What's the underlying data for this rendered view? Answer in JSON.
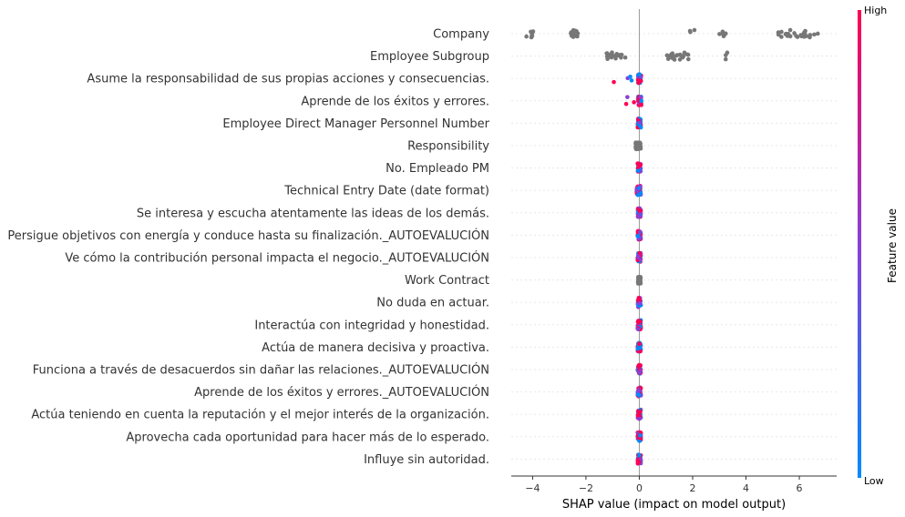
{
  "chart_data": {
    "type": "scatter",
    "subtype": "shap-beeswarm",
    "xlabel": "SHAP value (impact on model output)",
    "xlim": [
      -4.8,
      7.4
    ],
    "xticks": [
      -4,
      -2,
      0,
      2,
      4,
      6
    ],
    "xtick_labels": [
      "−4",
      "−2",
      "0",
      "2",
      "4",
      "6"
    ],
    "colorbar": {
      "title": "Feature value",
      "high_label": "High",
      "low_label": "Low",
      "high_color": "#ff0052",
      "low_color": "#008bfb",
      "missing_color": "#777777"
    },
    "features": [
      {
        "name": "Company",
        "color_mode": "missing",
        "clusters": [
          [
            -4.3,
            -3.9,
            8
          ],
          [
            -2.6,
            -2.3,
            22
          ],
          [
            1.8,
            2.2,
            3
          ],
          [
            3.0,
            3.3,
            6
          ],
          [
            5.2,
            6.7,
            28
          ]
        ]
      },
      {
        "name": "Employee Subgroup",
        "color_mode": "missing",
        "clusters": [
          [
            -1.3,
            -0.5,
            18
          ],
          [
            1.0,
            1.9,
            22
          ],
          [
            3.2,
            3.3,
            3
          ]
        ]
      },
      {
        "name": "Asume la responsabilidad de sus propias acciones y consecuencias.",
        "color_mode": "mixed",
        "clusters": [
          [
            -1.1,
            -0.25,
            4
          ],
          [
            -0.05,
            0.08,
            40
          ]
        ]
      },
      {
        "name": "Aprende de los éxitos y errores.",
        "color_mode": "mixed",
        "clusters": [
          [
            -0.5,
            -0.15,
            3
          ],
          [
            -0.05,
            0.08,
            40
          ]
        ]
      },
      {
        "name": "Employee Direct Manager Personnel Number",
        "color_mode": "mixed",
        "clusters": [
          [
            -0.06,
            0.06,
            40
          ]
        ]
      },
      {
        "name": "Responsibility",
        "color_mode": "missing",
        "clusters": [
          [
            -0.15,
            0.06,
            40
          ]
        ]
      },
      {
        "name": "No. Empleado PM ",
        "color_mode": "mixed",
        "clusters": [
          [
            -0.06,
            0.06,
            40
          ]
        ]
      },
      {
        "name": "Technical Entry Date (date format)",
        "color_mode": "mixed",
        "clusters": [
          [
            -0.1,
            0.06,
            40
          ]
        ]
      },
      {
        "name": "Se interesa y escucha atentamente las ideas de los demás.",
        "color_mode": "mixed",
        "clusters": [
          [
            -0.06,
            0.06,
            40
          ]
        ]
      },
      {
        "name": "Persigue objetivos con energía y conduce hasta su finalización._AUTOEVALUCIÓN",
        "color_mode": "mixed",
        "clusters": [
          [
            -0.06,
            0.06,
            40
          ]
        ]
      },
      {
        "name": "Ve cómo la contribución personal impacta el negocio._AUTOEVALUCIÓN",
        "color_mode": "mixed",
        "clusters": [
          [
            -0.06,
            0.06,
            40
          ]
        ]
      },
      {
        "name": "Work Contract",
        "color_mode": "missing",
        "clusters": [
          [
            -0.05,
            0.05,
            40
          ]
        ]
      },
      {
        "name": "No duda en actuar.",
        "color_mode": "mixed",
        "clusters": [
          [
            -0.06,
            0.06,
            40
          ]
        ]
      },
      {
        "name": "Interactúa con integridad y honestidad.",
        "color_mode": "mixed",
        "clusters": [
          [
            -0.06,
            0.06,
            40
          ]
        ]
      },
      {
        "name": "Actúa de manera decisiva y proactiva.",
        "color_mode": "mixed",
        "clusters": [
          [
            -0.06,
            0.06,
            40
          ]
        ]
      },
      {
        "name": "Funciona a través de desacuerdos sin dañar las relaciones._AUTOEVALUCIÓN",
        "color_mode": "mixed",
        "clusters": [
          [
            -0.06,
            0.06,
            40
          ]
        ]
      },
      {
        "name": "Aprende de los éxitos y errores._AUTOEVALUCIÓN",
        "color_mode": "mixed",
        "clusters": [
          [
            -0.06,
            0.06,
            40
          ]
        ]
      },
      {
        "name": "Actúa teniendo en cuenta la reputación y el mejor interés de la organización.",
        "color_mode": "mixed",
        "clusters": [
          [
            -0.06,
            0.06,
            40
          ]
        ]
      },
      {
        "name": "Aprovecha cada oportunidad para hacer más de lo esperado.",
        "color_mode": "mixed",
        "clusters": [
          [
            -0.06,
            0.06,
            40
          ]
        ]
      },
      {
        "name": "Influye sin autoridad.",
        "color_mode": "mixed",
        "clusters": [
          [
            -0.06,
            0.06,
            40
          ]
        ]
      }
    ]
  }
}
